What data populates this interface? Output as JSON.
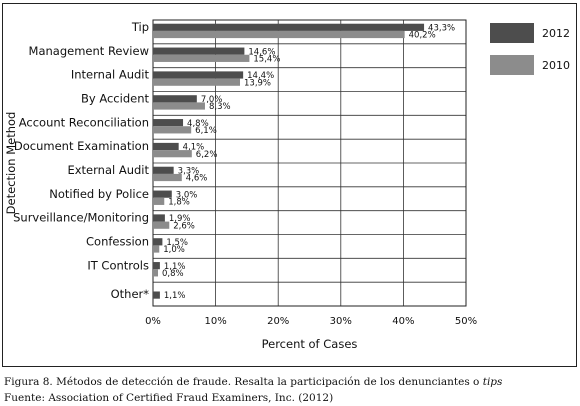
{
  "chart_data": {
    "type": "bar",
    "orientation": "horizontal",
    "ylabel": "Detection Method",
    "xlabel": "Percent of Cases",
    "xlim": [
      0,
      50
    ],
    "x_ticks": [
      "0%",
      "10%",
      "20%",
      "30%",
      "40%",
      "50%"
    ],
    "grid": true,
    "legend_position": "right",
    "categories": [
      "Tip",
      "Management Review",
      "Internal Audit",
      "By Accident",
      "Account Reconciliation",
      "Document Examination",
      "External Audit",
      "Notified by Police",
      "Surveillance/Monitoring",
      "Confession",
      "IT Controls",
      "Other*"
    ],
    "series": [
      {
        "name": "2012",
        "color": "#4d4d4d",
        "values": [
          43.3,
          14.6,
          14.4,
          7.0,
          4.8,
          4.1,
          3.3,
          3.0,
          1.9,
          1.5,
          1.1,
          1.1
        ],
        "labels": [
          "43,3%",
          "14,6%",
          "14,4%",
          "7,0%",
          "4,8%",
          "4,1%",
          "3,3%",
          "3,0%",
          "1,9%",
          "1,5%",
          "1,1%",
          "1,1%"
        ]
      },
      {
        "name": "2010",
        "color": "#8c8c8c",
        "values": [
          40.2,
          15.4,
          13.9,
          8.3,
          6.1,
          6.2,
          4.6,
          1.8,
          2.6,
          1.0,
          0.8,
          null
        ],
        "labels": [
          "40,2%",
          "15,4%",
          "13,9%",
          "8,3%",
          "6,1%",
          "6,2%",
          "4,6%",
          "1,8%",
          "2,6%",
          "1,0%",
          "0,8%",
          ""
        ]
      }
    ]
  },
  "caption": {
    "figure_prefix": "Figura 8. Métodos de detección de fraude. Resalta la participación de los denunciantes o ",
    "figure_italic": "tips",
    "source": "Fuente: Association of Certified Fraud Examiners, Inc. (2012)"
  }
}
